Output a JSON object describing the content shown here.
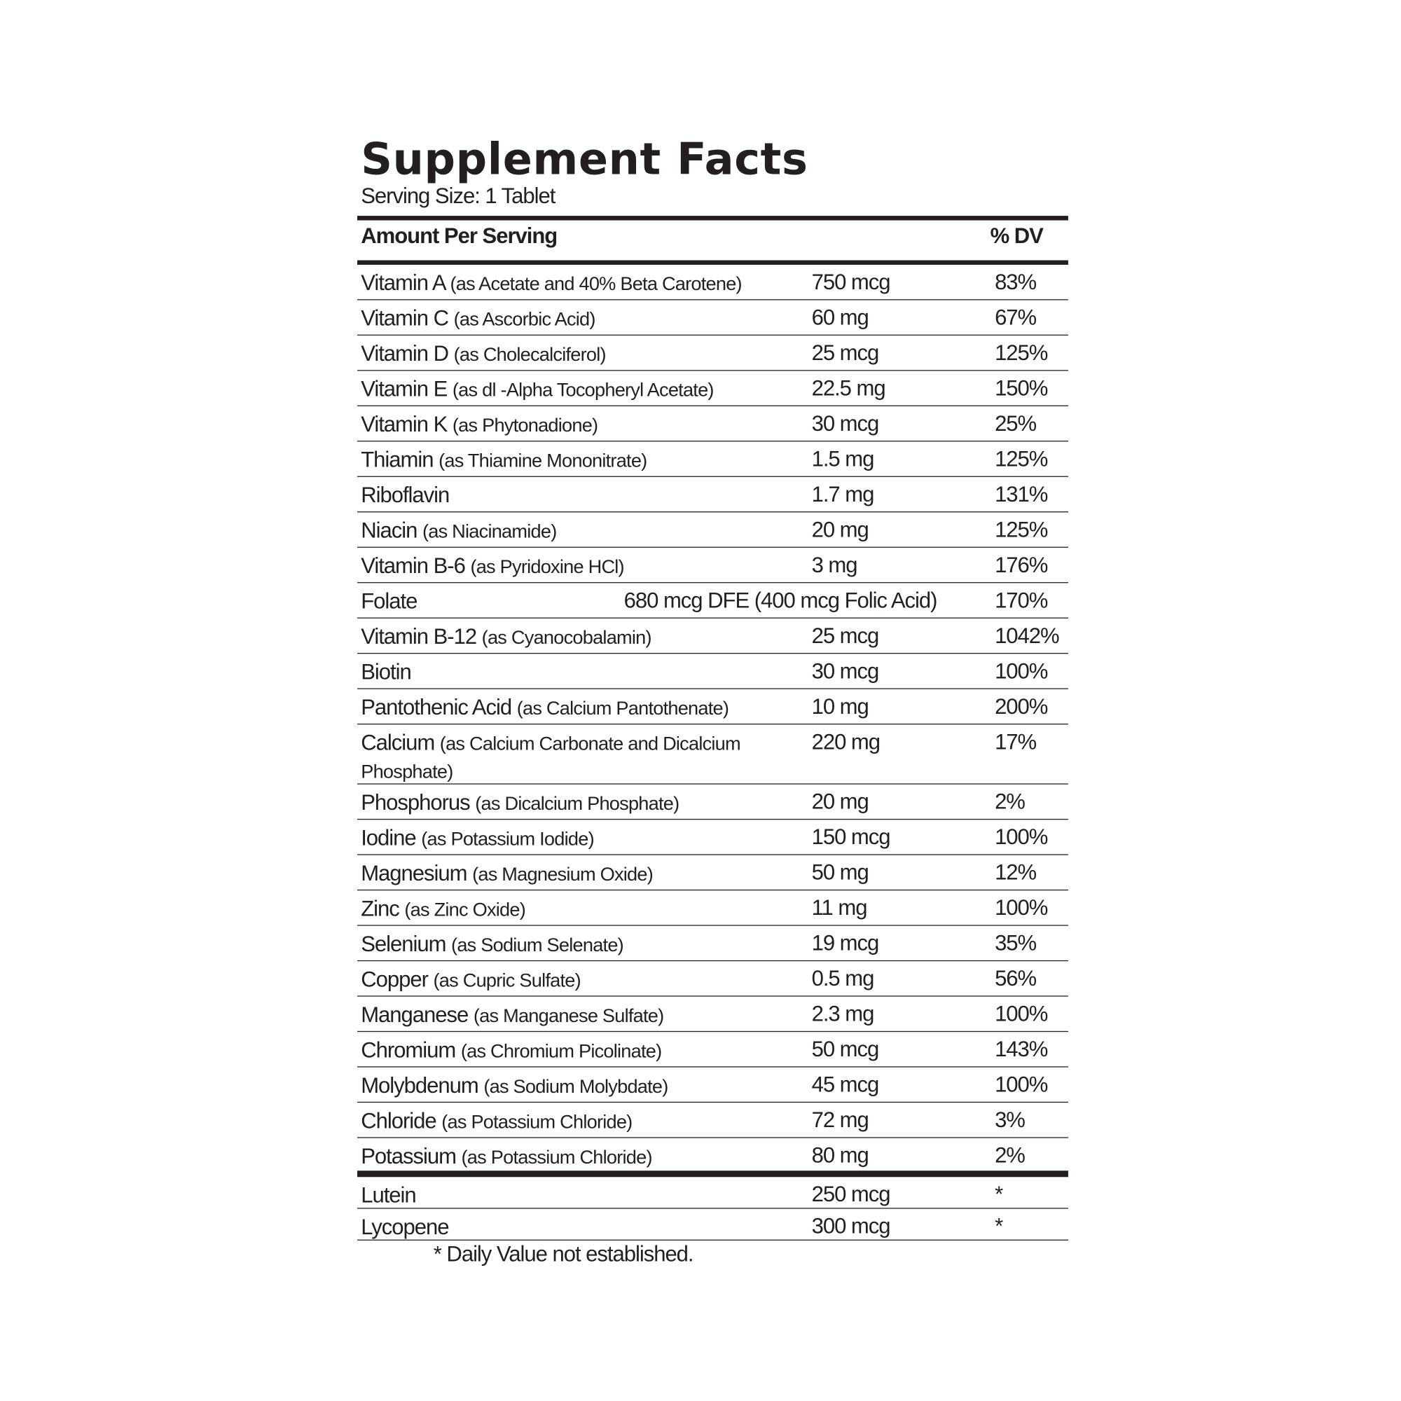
{
  "header": {
    "title": "Supplement Facts",
    "serving_size": "Serving Size: 1 Tablet"
  },
  "table": {
    "columns": [
      "Amount Per Serving",
      "% DV"
    ],
    "rows": [
      {
        "name": "Vitamin A",
        "detail": "(as Acetate and 40% Beta Carotene)",
        "amount": "750 mcg",
        "dv": "83%"
      },
      {
        "name": "Vitamin C",
        "detail": "(as Ascorbic Acid)",
        "amount": "60 mg",
        "dv": "67%"
      },
      {
        "name": "Vitamin D",
        "detail": "(as Cholecalciferol)",
        "amount": "25 mcg",
        "dv": "125%"
      },
      {
        "name": "Vitamin E",
        "detail": "(as dl -Alpha Tocopheryl Acetate)",
        "amount": "22.5 mg",
        "dv": "150%"
      },
      {
        "name": "Vitamin K",
        "detail": "(as Phytonadione)",
        "amount": "30 mcg",
        "dv": "25%"
      },
      {
        "name": "Thiamin",
        "detail": "(as Thiamine Mononitrate)",
        "amount": "1.5 mg",
        "dv": "125%"
      },
      {
        "name": "Riboflavin",
        "amount": "1.7 mg",
        "dv": "131%"
      },
      {
        "name": "Niacin",
        "detail": "(as Niacinamide)",
        "amount": "20 mg",
        "dv": "125%"
      },
      {
        "name": "Vitamin B-6",
        "detail": "(as Pyridoxine HCl)",
        "amount": "3 mg",
        "dv": "176%"
      },
      {
        "name": "Folate",
        "amount": "680 mcg DFE (400 mcg Folic Acid)",
        "dv": "170%"
      },
      {
        "name": "Vitamin B-12",
        "detail": "(as Cyanocobalamin)",
        "amount": "25 mcg",
        "dv": "1042%"
      },
      {
        "name": "Biotin",
        "amount": "30 mcg",
        "dv": "100%"
      },
      {
        "name": "Pantothenic Acid",
        "detail": "(as Calcium Pantothenate)",
        "amount": "10 mg",
        "dv": "200%"
      },
      {
        "name": "Calcium",
        "detail": "(as Calcium Carbonate and Dicalcium Phosphate)",
        "amount": "220 mg",
        "dv": "17%"
      },
      {
        "name": "Phosphorus",
        "detail": "(as Dicalcium Phosphate)",
        "amount": "20 mg",
        "dv": "2%"
      },
      {
        "name": "Iodine",
        "detail": "(as Potassium Iodide)",
        "amount": "150 mcg",
        "dv": "100%"
      },
      {
        "name": "Magnesium",
        "detail": "(as Magnesium Oxide)",
        "amount": "50 mg",
        "dv": "12%"
      },
      {
        "name": "Zinc",
        "detail": "(as Zinc Oxide)",
        "amount": "11 mg",
        "dv": "100%"
      },
      {
        "name": "Selenium",
        "detail": "(as Sodium Selenate)",
        "amount": "19 mcg",
        "dv": "35%"
      },
      {
        "name": "Copper",
        "detail": "(as Cupric Sulfate)",
        "amount": "0.5 mg",
        "dv": "56%"
      },
      {
        "name": "Manganese",
        "detail": "(as Manganese Sulfate)",
        "amount": "2.3 mg",
        "dv": "100%"
      },
      {
        "name": "Chromium",
        "detail": "(as Chromium Picolinate)",
        "amount": "50 mcg",
        "dv": "143%"
      },
      {
        "name": "Molybdenum",
        "detail": "(as Sodium Molybdate)",
        "amount": "45 mcg",
        "dv": "100%"
      },
      {
        "name": "Chloride",
        "detail": "(as Potassium Chloride)",
        "amount": "72 mg",
        "dv": "3%"
      },
      {
        "name": "Potassium",
        "detail": "(as Potassium Chloride)",
        "amount": "80 mg",
        "dv": "2%"
      }
    ],
    "other_rows": [
      {
        "name": "Lutein",
        "amount": "250 mcg",
        "dv": "*"
      },
      {
        "name": "Lycopene",
        "amount": "300 mcg",
        "dv": "*"
      }
    ]
  },
  "footnote": "* Daily Value not established."
}
